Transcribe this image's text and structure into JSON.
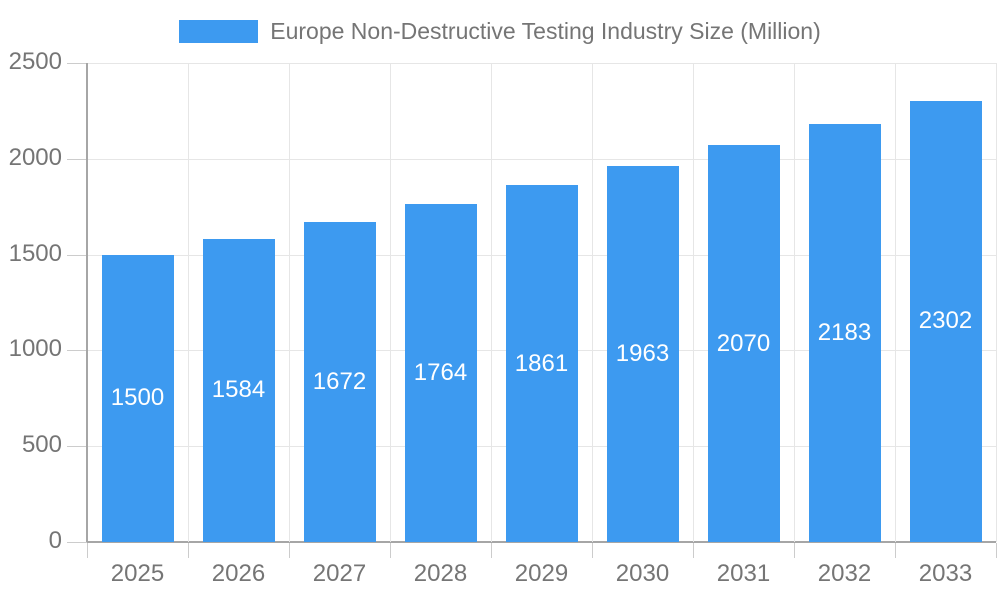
{
  "legend": {
    "label": "Europe Non-Destructive Testing Industry Size (Million)"
  },
  "chart_data": {
    "type": "bar",
    "title": "Europe Non-Destructive Testing Industry Size (Million)",
    "categories": [
      "2025",
      "2026",
      "2027",
      "2028",
      "2029",
      "2030",
      "2031",
      "2032",
      "2033"
    ],
    "values": [
      1500,
      1584,
      1672,
      1764,
      1861,
      1963,
      2070,
      2183,
      2302
    ],
    "xlabel": "",
    "ylabel": "",
    "ylim": [
      0,
      2500
    ],
    "yticks": [
      0,
      500,
      1000,
      1500,
      2000,
      2500
    ],
    "grid": true,
    "legend_position": "top-center",
    "value_label_position": "inside-center"
  },
  "colors": {
    "bar_fill": "#3D9AF0",
    "legend_swatch": "#3D9AF0",
    "label_text": "#757575",
    "value_label_text": "#ffffff",
    "gridline": "#e6e6e6",
    "axis_line": "#a6a6a6",
    "tick_mark": "#cccccc",
    "background": "#ffffff"
  }
}
